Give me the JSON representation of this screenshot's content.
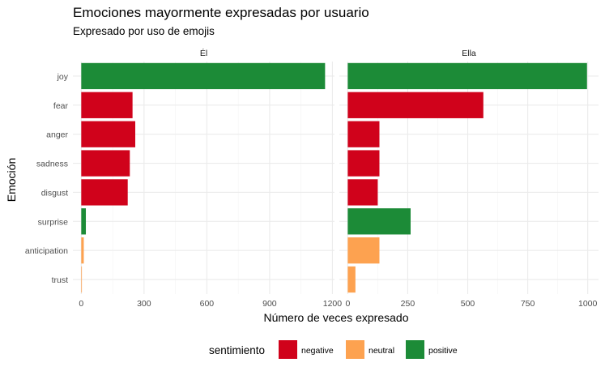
{
  "chart_data": {
    "type": "bar",
    "orientation": "horizontal",
    "title": "Emociones mayormente expresadas por usuario",
    "subtitle": "Expresado por uso de emojis",
    "xlabel": "Número de veces expresado",
    "ylabel": "Emoción",
    "grid": true,
    "categories": [
      "joy",
      "fear",
      "anger",
      "sadness",
      "disgust",
      "surprise",
      "anticipation",
      "trust"
    ],
    "sentiment_by_category": [
      "positive",
      "negative",
      "negative",
      "negative",
      "negative",
      "positive",
      "neutral",
      "neutral"
    ],
    "facets": [
      {
        "name": "Él",
        "values": [
          1165,
          245,
          258,
          232,
          222,
          22,
          12,
          3
        ],
        "xlim": [
          -40,
          1210
        ],
        "xticks": [
          0,
          300,
          600,
          900,
          1200
        ],
        "xtick_labels": [
          "0",
          "300",
          "600",
          "900",
          "1200"
        ]
      },
      {
        "name": "Ella",
        "values": [
          997,
          565,
          132,
          132,
          125,
          262,
          132,
          32
        ],
        "xlim": [
          -35,
          1045
        ],
        "xticks": [
          0,
          250,
          500,
          750,
          1000
        ],
        "xtick_labels": [
          "0",
          "250",
          "500",
          "750",
          "1000"
        ]
      }
    ],
    "legend": {
      "title": "sentimiento",
      "position": "bottom",
      "items": [
        {
          "name": "negative",
          "color": "#d0021b"
        },
        {
          "name": "neutral",
          "color": "#fda250"
        },
        {
          "name": "positive",
          "color": "#1c8b37"
        }
      ]
    },
    "colors": {
      "negative": "#d0021b",
      "neutral": "#fda250",
      "positive": "#1c8b37",
      "grid_major": "#ebebeb",
      "grid_minor": "#f4f4f4"
    }
  }
}
